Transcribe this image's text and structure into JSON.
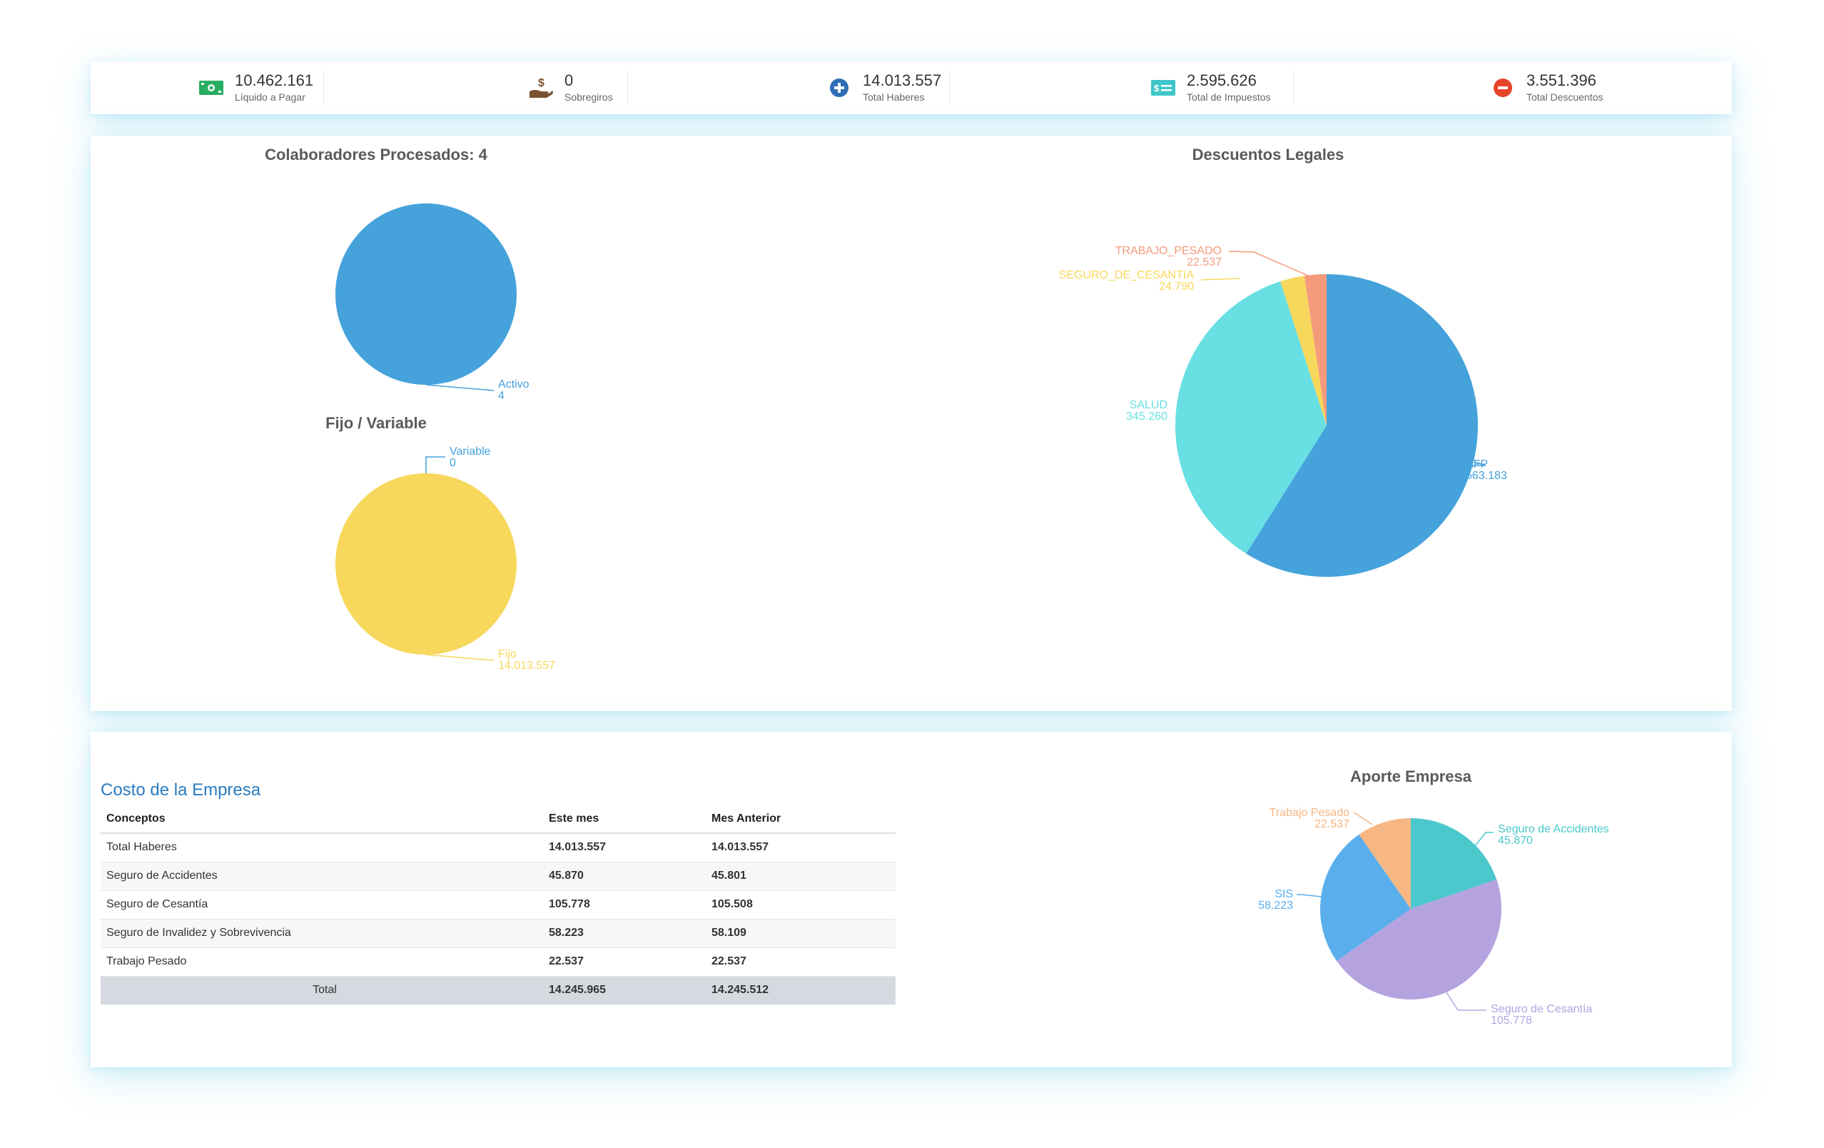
{
  "stats": [
    {
      "value": "10.462.161",
      "label": "Líquido a Pagar",
      "icon": "money-bill-icon",
      "color": "#27ae60"
    },
    {
      "value": "0",
      "label": "Sobregiros",
      "icon": "hand-coin-icon",
      "color": "#7a5230"
    },
    {
      "value": "14.013.557",
      "label": "Total Haberes",
      "icon": "plus-circle-icon",
      "color": "#2d6db5"
    },
    {
      "value": "2.595.626",
      "label": "Total de Impuestos",
      "icon": "tax-ticket-icon",
      "color": "#3ec6c9"
    },
    {
      "value": "3.551.396",
      "label": "Total Descuentos",
      "icon": "minus-circle-icon",
      "color": "#e8442c"
    }
  ],
  "charts": {
    "colaboradores": {
      "title": "Colaboradores Procesados: 4"
    },
    "fijo_variable": {
      "title": "Fijo / Variable"
    },
    "descuentos": {
      "title": "Descuentos Legales"
    },
    "aporte": {
      "title": "Aporte Empresa"
    }
  },
  "chart_data": [
    {
      "type": "pie",
      "title": "Colaboradores Procesados: 4",
      "slices": [
        {
          "label": "Activo",
          "value": 4,
          "display": "4",
          "color": "#45a2db"
        }
      ]
    },
    {
      "type": "pie",
      "title": "Fijo / Variable",
      "slices": [
        {
          "label": "Fijo",
          "value": 14013557,
          "display": "14.013.557",
          "color": "#f7d75c"
        },
        {
          "label": "Variable",
          "value": 0,
          "display": "0",
          "color": "#45a2db"
        }
      ]
    },
    {
      "type": "pie",
      "title": "Descuentos Legales",
      "slices": [
        {
          "label": "AFP",
          "value": 563183,
          "display": "563.183",
          "color": "#45a2db"
        },
        {
          "label": "SALUD",
          "value": 345260,
          "display": "345.260",
          "color": "#67dfe3"
        },
        {
          "label": "SEGURO_DE_CESANTIA",
          "value": 24790,
          "display": "24.790",
          "color": "#f7d75c"
        },
        {
          "label": "TRABAJO_PESADO",
          "value": 22537,
          "display": "22.537",
          "color": "#f59b7c"
        }
      ]
    },
    {
      "type": "pie",
      "title": "Aporte Empresa",
      "slices": [
        {
          "label": "Seguro de Accidentes",
          "value": 45870,
          "display": "45.870",
          "color": "#4bc8cc"
        },
        {
          "label": "Seguro de Cesantía",
          "value": 105778,
          "display": "105.778",
          "color": "#b5a3e0"
        },
        {
          "label": "SIS",
          "value": 58223,
          "display": "58.223",
          "color": "#5aaeec"
        },
        {
          "label": "Trabajo Pesado",
          "value": 22537,
          "display": "22.537",
          "color": "#f6b784"
        }
      ]
    }
  ],
  "cost": {
    "title": "Costo de la Empresa",
    "headers": [
      "Conceptos",
      "Este mes",
      "Mes Anterior"
    ],
    "rows": [
      [
        "Total Haberes",
        "14.013.557",
        "14.013.557"
      ],
      [
        "Seguro de Accidentes",
        "45.870",
        "45.801"
      ],
      [
        "Seguro de Cesantía",
        "105.778",
        "105.508"
      ],
      [
        "Seguro de Invalidez y Sobrevivencia",
        "58.223",
        "58.109"
      ],
      [
        "Trabajo Pesado",
        "22.537",
        "22.537"
      ]
    ],
    "total": [
      "Total",
      "14.245.965",
      "14.245.512"
    ]
  }
}
